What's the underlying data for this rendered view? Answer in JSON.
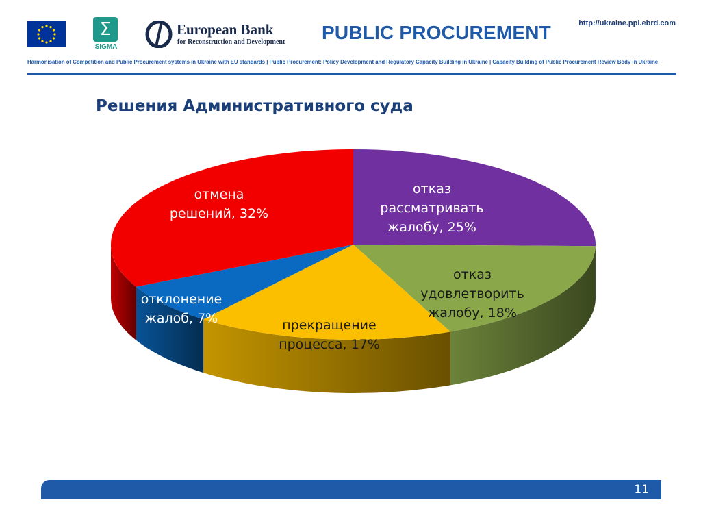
{
  "header": {
    "sigma_text": "SIGMA",
    "bank_name": "European Bank",
    "bank_sub": "for Reconstruction and Development",
    "title": "PUBLIC PROCUREMENT",
    "url": "http://ukraine.ppl.ebrd.com",
    "project_line": "Harmonisation of Competition and Public Procurement systems in Ukraine with EU standards  |  Public Procurement: Policy Development and Regulatory Capacity Building in Ukraine  |  Capacity Building of Public Procurement Review Body in Ukraine",
    "brand_color": "#1e5aa8"
  },
  "slide": {
    "title": "Решения Административного суда",
    "page_number": "11"
  },
  "chart_data": {
    "type": "pie",
    "title": "Решения Административного суда",
    "slices": [
      {
        "label_lines": [
          "отказ",
          "рассматривать",
          "жалобу, 25%"
        ],
        "value": 25,
        "color": "#7030a0",
        "label_color": "#ffffff"
      },
      {
        "label_lines": [
          "отказ",
          "удовлетворить",
          "жалобу, 18%"
        ],
        "value": 18,
        "color": "#8aa84a",
        "label_color": "#1a1a1a"
      },
      {
        "label_lines": [
          "прекращение",
          "процесса, 17%"
        ],
        "value": 17,
        "color": "#fbbf00",
        "label_color": "#1a1a1a"
      },
      {
        "label_lines": [
          "отклонение",
          "жалоб, 7%"
        ],
        "value": 7,
        "color": "#0a6ac2",
        "label_color": "#ffffff"
      },
      {
        "label_lines": [
          "отмена",
          "решений, 32%"
        ],
        "value": 32,
        "color": "#f20000",
        "label_color": "#ffffff"
      }
    ],
    "start_angle_deg": -90,
    "direction": "clockwise",
    "style": "3d"
  }
}
